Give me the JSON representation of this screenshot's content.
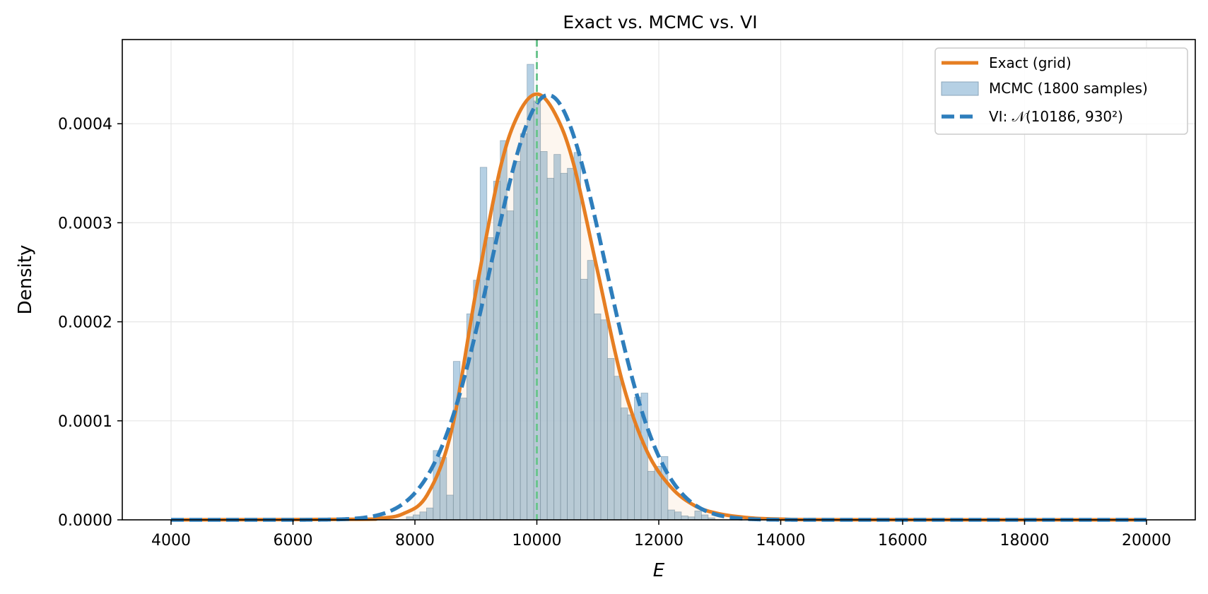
{
  "chart_data": {
    "type": "histogram+line",
    "title": "Exact vs. MCMC vs. VI",
    "xlabel": "E",
    "ylabel": "Density",
    "xlim": [
      3200,
      20800
    ],
    "ylim": [
      0,
      0.000485
    ],
    "x_ticks": [
      4000,
      6000,
      8000,
      10000,
      12000,
      14000,
      16000,
      18000,
      20000
    ],
    "x_tick_labels": [
      "4000",
      "6000",
      "8000",
      "10000",
      "12000",
      "14000",
      "16000",
      "18000",
      "20000"
    ],
    "y_ticks": [
      0,
      0.0001,
      0.0002,
      0.0003,
      0.0004
    ],
    "y_tick_labels": [
      "0.0000",
      "0.0001",
      "0.0002",
      "0.0003",
      "0.0004"
    ],
    "grid": true,
    "legend_position": "top-right",
    "reference_line": {
      "x": 10000,
      "color": "#6cc58f",
      "style": "dashed"
    },
    "series": [
      {
        "name": "Exact (grid)",
        "kind": "line",
        "color": "#e67e22",
        "x": [
          4000,
          7000,
          7400,
          7800,
          8200,
          8600,
          9000,
          9400,
          9700,
          10000,
          10300,
          10600,
          11000,
          11400,
          11800,
          12200,
          12600,
          13000,
          13500,
          14000,
          15000,
          20000
        ],
        "y": [
          0,
          5e-07,
          1.5e-06,
          6e-06,
          2.5e-05,
          9e-05,
          0.00023,
          0.000355,
          0.00041,
          0.00043,
          0.00041,
          0.00036,
          0.00025,
          0.00014,
          7e-05,
          3.3e-05,
          1.4e-05,
          6e-06,
          2e-06,
          7e-07,
          1e-07,
          0
        ]
      },
      {
        "name": "MCMC (1800 samples)",
        "kind": "histogram",
        "color": "#a8c8df",
        "bins_start": 7860,
        "bin_width": 110,
        "values": [
          3e-06,
          5e-06,
          8e-06,
          1.2e-05,
          7e-05,
          6.3e-05,
          2.5e-05,
          0.00016,
          0.000123,
          0.000208,
          0.000242,
          0.000356,
          0.000285,
          0.000342,
          0.000383,
          0.000312,
          0.000362,
          0.00039,
          0.00046,
          0.000423,
          0.000372,
          0.000345,
          0.000369,
          0.00035,
          0.000355,
          0.000371,
          0.000243,
          0.000262,
          0.000208,
          0.000202,
          0.000163,
          0.000145,
          0.000113,
          0.000106,
          0.000124,
          0.000128,
          4.9e-05,
          5.4e-05,
          6.4e-05,
          1e-05,
          8e-06,
          4e-06,
          3e-06,
          9e-06,
          5e-06,
          2e-06
        ]
      },
      {
        "name": "VI: 𝒩(10186, 930²)",
        "kind": "line",
        "color": "#2e7ebc",
        "style": "dashed",
        "distribution": "normal",
        "mean": 10186,
        "sd": 930
      }
    ]
  }
}
